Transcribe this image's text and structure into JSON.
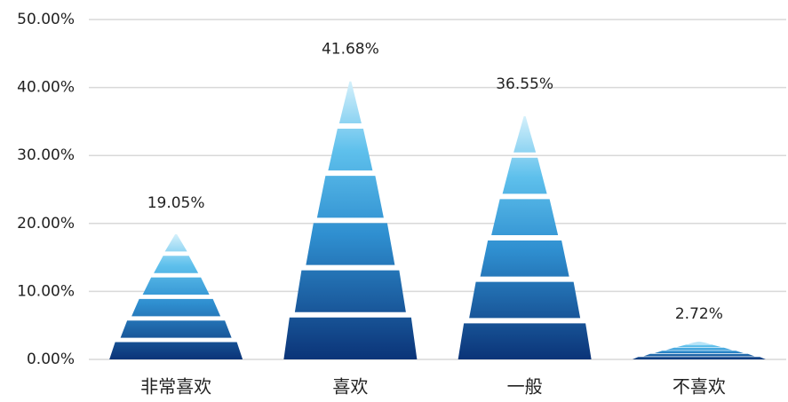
{
  "chart_data": {
    "type": "bar",
    "categories": [
      "非常喜欢",
      "喜欢",
      "一般",
      "不喜欢"
    ],
    "values": [
      19.05,
      41.68,
      36.55,
      2.72
    ],
    "value_labels": [
      "19.05%",
      "41.68%",
      "36.55%",
      "2.72%"
    ],
    "ylim": [
      0,
      50
    ],
    "yticks": [
      {
        "value": 0,
        "label": "0.00%"
      },
      {
        "value": 10,
        "label": "10.00%"
      },
      {
        "value": 20,
        "label": "20.00%"
      },
      {
        "value": 30,
        "label": "30.00%"
      },
      {
        "value": 40,
        "label": "40.00%"
      },
      {
        "value": 50,
        "label": "50.00%"
      }
    ],
    "grid": true
  }
}
